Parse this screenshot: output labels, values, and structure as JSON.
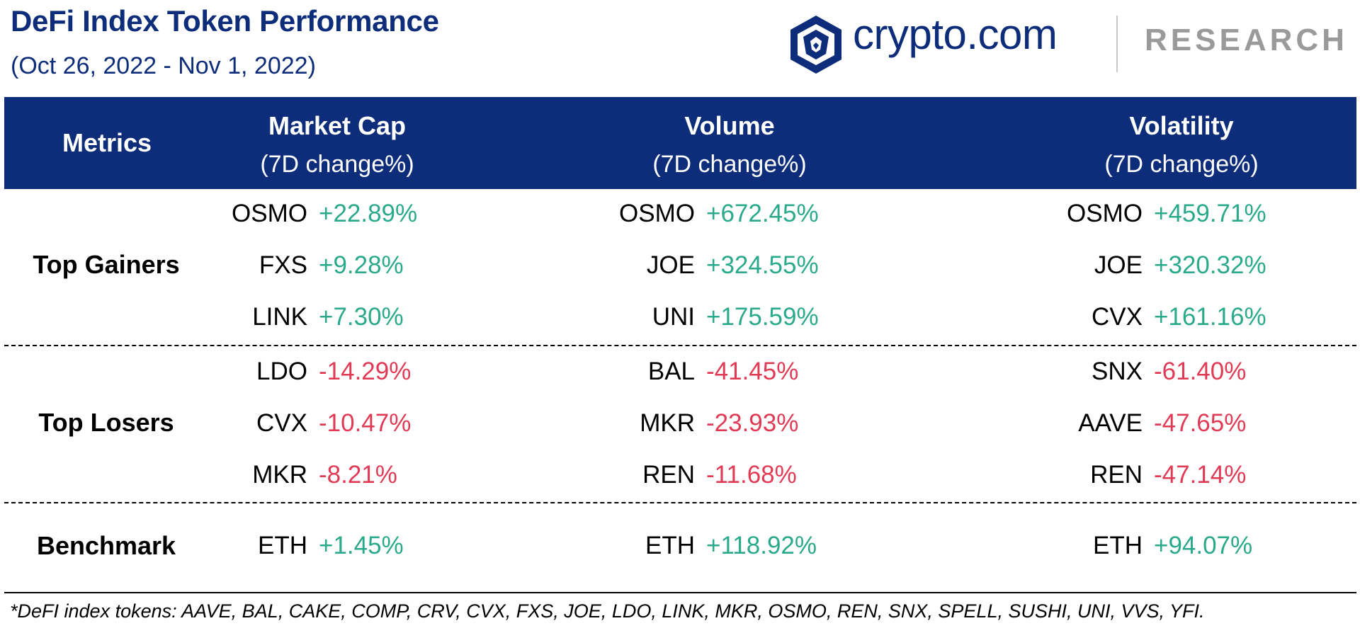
{
  "title": "DeFi Index Token Performance",
  "subtitle": "(Oct 26, 2022 - Nov 1, 2022)",
  "brand": {
    "name": "crypto.com",
    "research": "RESEARCH",
    "logo_icon": "lion-shield-icon"
  },
  "colors": {
    "navy": "#0d2d7a",
    "positive": "#2aa98b",
    "negative": "#e03a55",
    "research_gray": "#9a9a9a"
  },
  "header": {
    "metrics": "Metrics",
    "columns": [
      {
        "name": "Market Cap",
        "sub": "(7D change%)"
      },
      {
        "name": "Volume",
        "sub": "(7D change%)"
      },
      {
        "name": "Volatility",
        "sub": "(7D change%)"
      }
    ]
  },
  "sections": {
    "gainers": {
      "label": "Top Gainers",
      "market_cap": [
        {
          "token": "OSMO",
          "change": "+22.89%"
        },
        {
          "token": "FXS",
          "change": "+9.28%"
        },
        {
          "token": "LINK",
          "change": "+7.30%"
        }
      ],
      "volume": [
        {
          "token": "OSMO",
          "change": "+672.45%"
        },
        {
          "token": "JOE",
          "change": "+324.55%"
        },
        {
          "token": "UNI",
          "change": "+175.59%"
        }
      ],
      "volatility": [
        {
          "token": "OSMO",
          "change": "+459.71%"
        },
        {
          "token": "JOE",
          "change": "+320.32%"
        },
        {
          "token": "CVX",
          "change": "+161.16%"
        }
      ]
    },
    "losers": {
      "label": "Top Losers",
      "market_cap": [
        {
          "token": "LDO",
          "change": "-14.29%"
        },
        {
          "token": "CVX",
          "change": "-10.47%"
        },
        {
          "token": "MKR",
          "change": "-8.21%"
        }
      ],
      "volume": [
        {
          "token": "BAL",
          "change": "-41.45%"
        },
        {
          "token": "MKR",
          "change": "-23.93%"
        },
        {
          "token": "REN",
          "change": "-11.68%"
        }
      ],
      "volatility": [
        {
          "token": "SNX",
          "change": "-61.40%"
        },
        {
          "token": "AAVE",
          "change": "-47.65%"
        },
        {
          "token": "REN",
          "change": "-47.14%"
        }
      ]
    },
    "benchmark": {
      "label": "Benchmark",
      "market_cap": {
        "token": "ETH",
        "change": "+1.45%"
      },
      "volume": {
        "token": "ETH",
        "change": "+118.92%"
      },
      "volatility": {
        "token": "ETH",
        "change": "+94.07%"
      }
    }
  },
  "footnote": "*DeFI index tokens: AAVE, BAL, CAKE, COMP, CRV, CVX, FXS, JOE, LDO, LINK, MKR, OSMO, REN, SNX, SPELL, SUSHI, UNI, VVS, YFI."
}
